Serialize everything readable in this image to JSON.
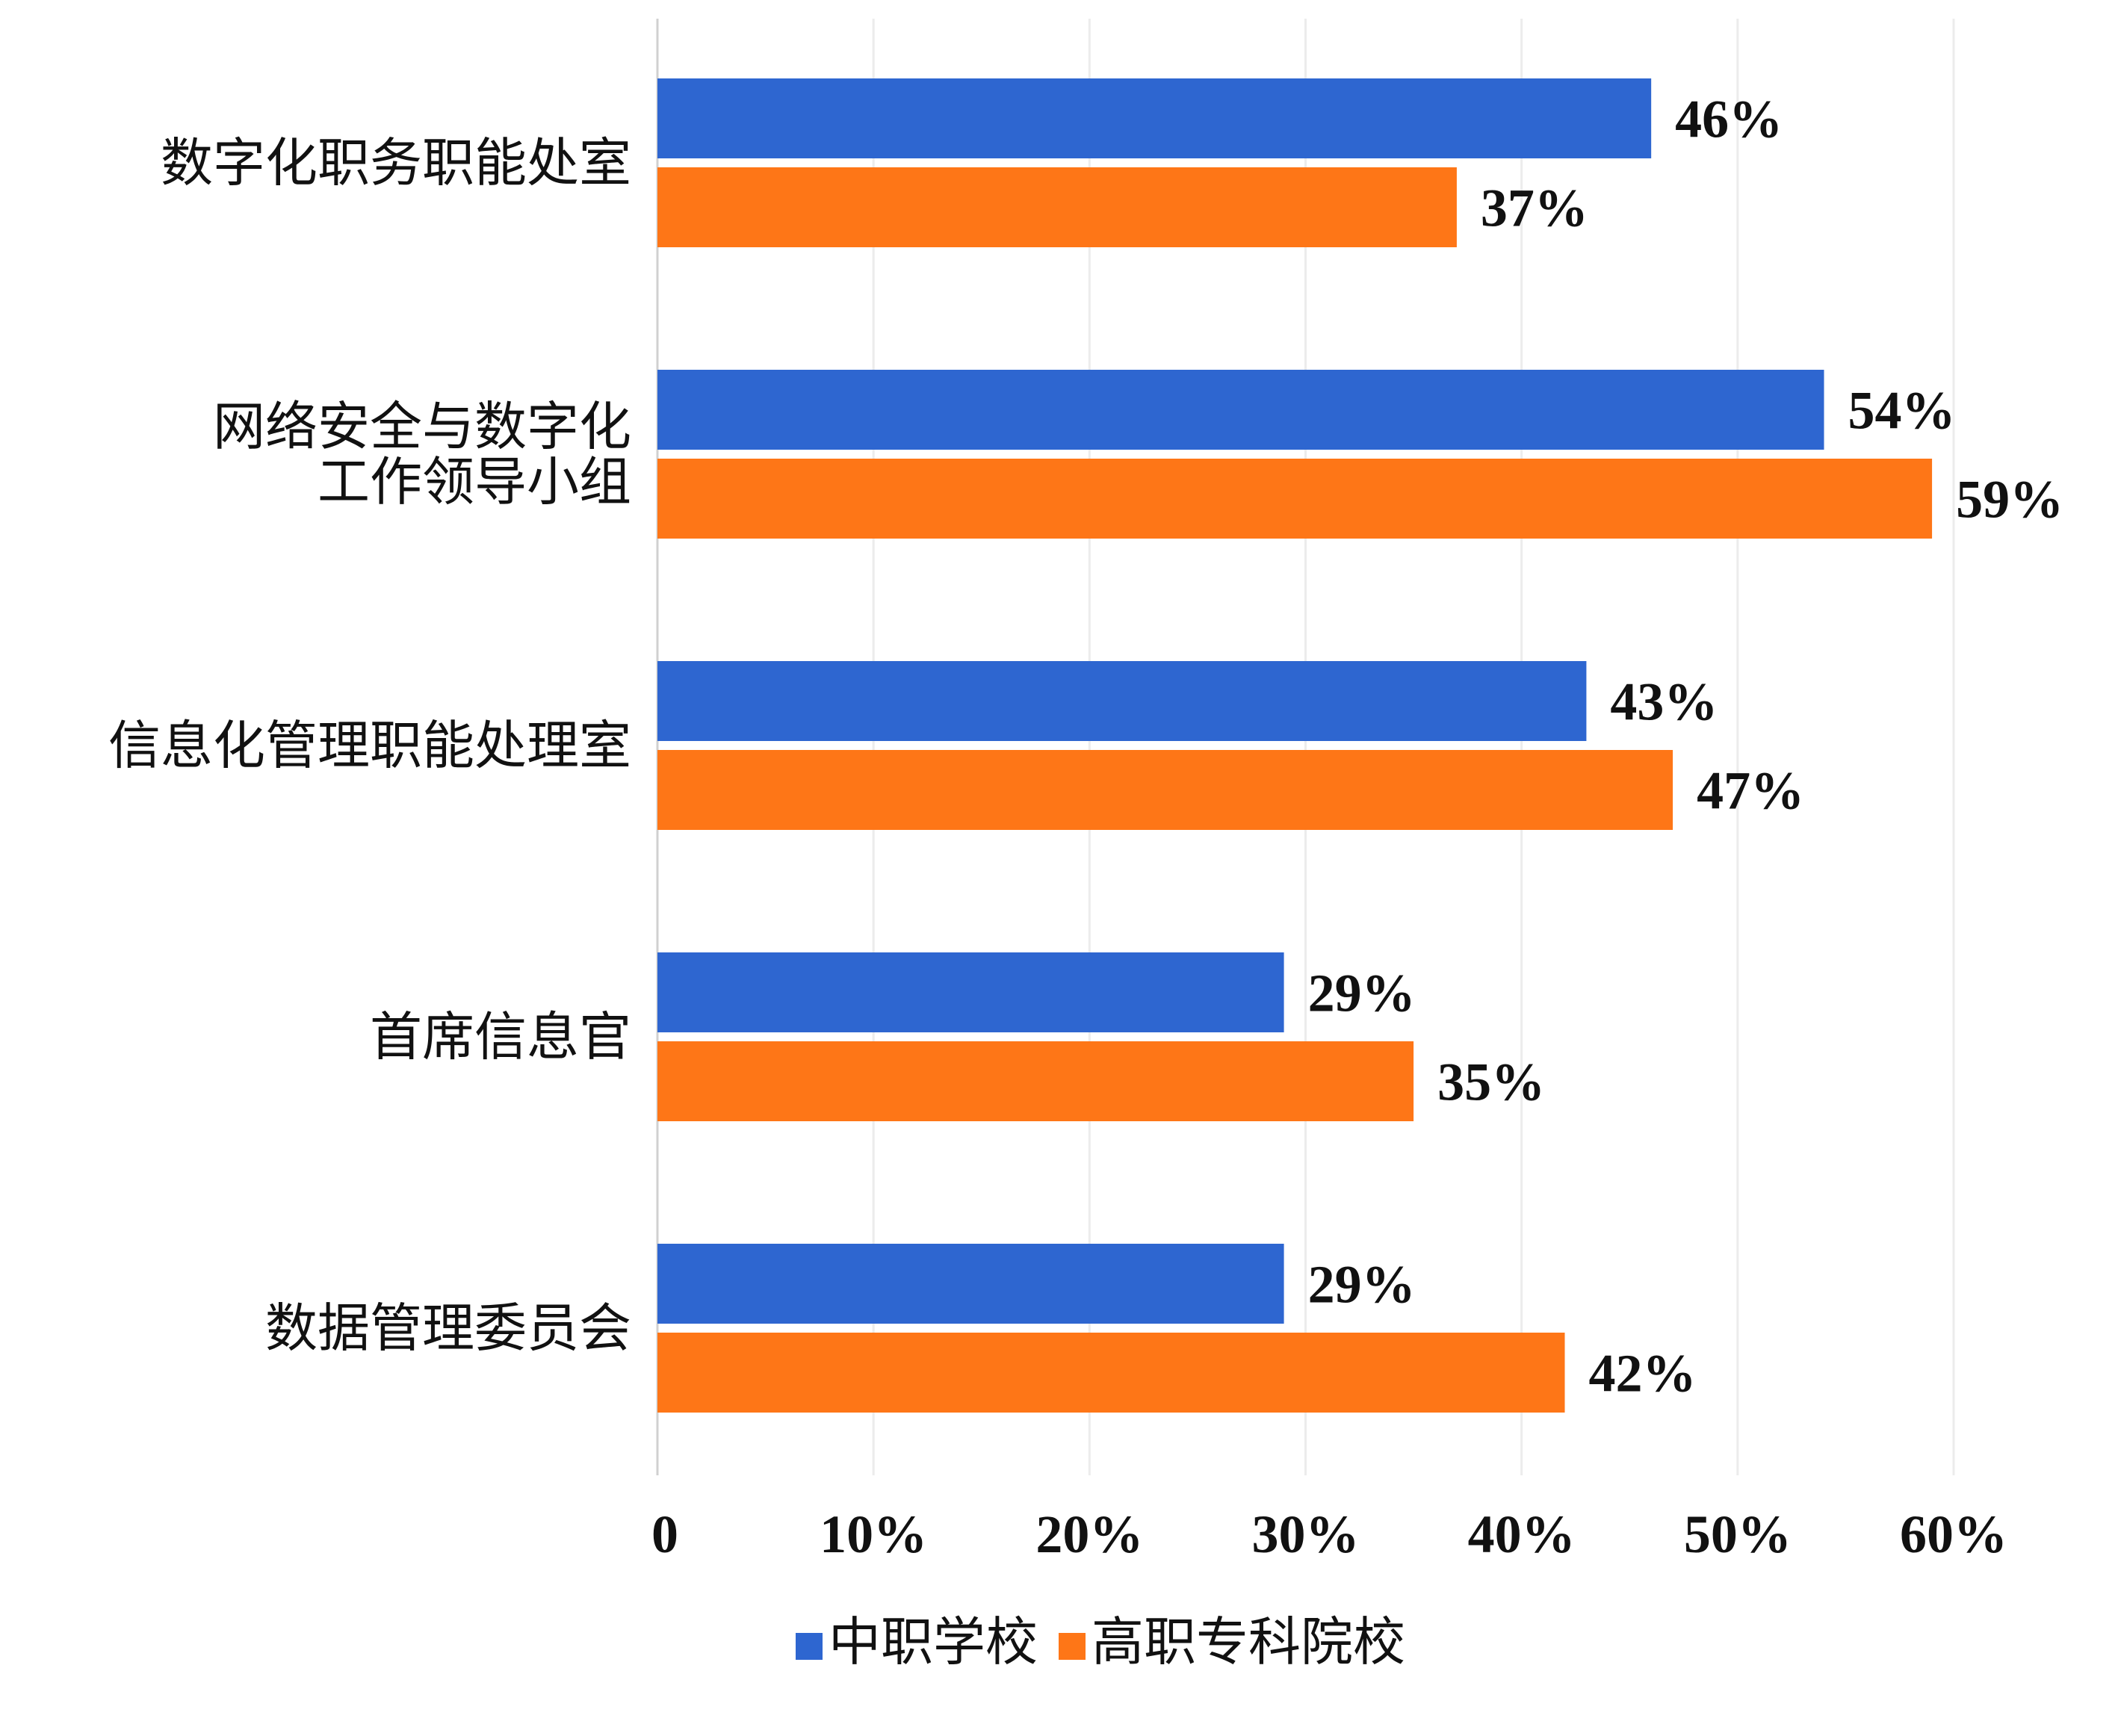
{
  "chart_data": {
    "type": "bar",
    "orientation": "horizontal",
    "categories": [
      [
        "数字化职务职能处室"
      ],
      [
        "网络安全与数字化",
        "工作领导小组"
      ],
      [
        "信息化管理职能处理室"
      ],
      [
        "首席信息官"
      ],
      [
        "数据管理委员会"
      ]
    ],
    "series": [
      {
        "name": "中职学校",
        "color": "#2e66d0",
        "values": [
          46,
          54,
          43,
          29,
          29
        ],
        "labels": [
          "46%",
          "54%",
          "43%",
          "29%",
          "29%"
        ]
      },
      {
        "name": "高职专科院校",
        "color": "#fe7617",
        "values": [
          37,
          59,
          47,
          35,
          42
        ],
        "labels": [
          "37%",
          "59%",
          "47%",
          "35%",
          "42%"
        ]
      }
    ],
    "xlim": [
      0,
      60
    ],
    "xticks": [
      0,
      10,
      20,
      30,
      40,
      50,
      60
    ],
    "xtick_labels": [
      "0",
      "10%",
      "20%",
      "30%",
      "40%",
      "50%",
      "60%"
    ],
    "grid": true,
    "legend": "bottom"
  }
}
